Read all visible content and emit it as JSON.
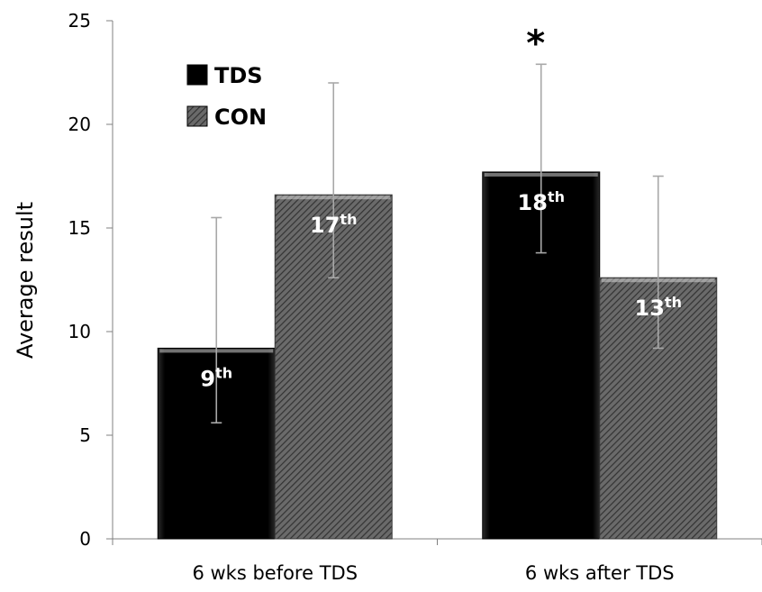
{
  "chart_data": {
    "type": "bar",
    "title": "",
    "xlabel": "",
    "ylabel": "Average result",
    "ylim": [
      0,
      25
    ],
    "yticks": [
      0,
      5,
      10,
      15,
      20,
      25
    ],
    "categories": [
      "6 wks before TDS",
      "6 wks after TDS"
    ],
    "series": [
      {
        "name": "TDS",
        "values": [
          9.2,
          17.7
        ],
        "error_low": [
          5.6,
          13.8
        ],
        "error_high": [
          15.5,
          22.9
        ],
        "labels": [
          [
            "9",
            "th"
          ],
          [
            "18",
            "th"
          ]
        ],
        "color": "#0a0a0a"
      },
      {
        "name": "CON",
        "values": [
          16.6,
          12.6
        ],
        "error_low": [
          12.6,
          9.2
        ],
        "error_high": [
          22.0,
          17.5
        ],
        "labels": [
          [
            "17",
            "th"
          ],
          [
            "13",
            "th"
          ]
        ],
        "color": "#555555"
      }
    ],
    "annotations": [
      {
        "text": "*",
        "category_index": 1,
        "series_index": 0
      }
    ],
    "grid": false,
    "legend": {
      "position": "top-left"
    }
  }
}
